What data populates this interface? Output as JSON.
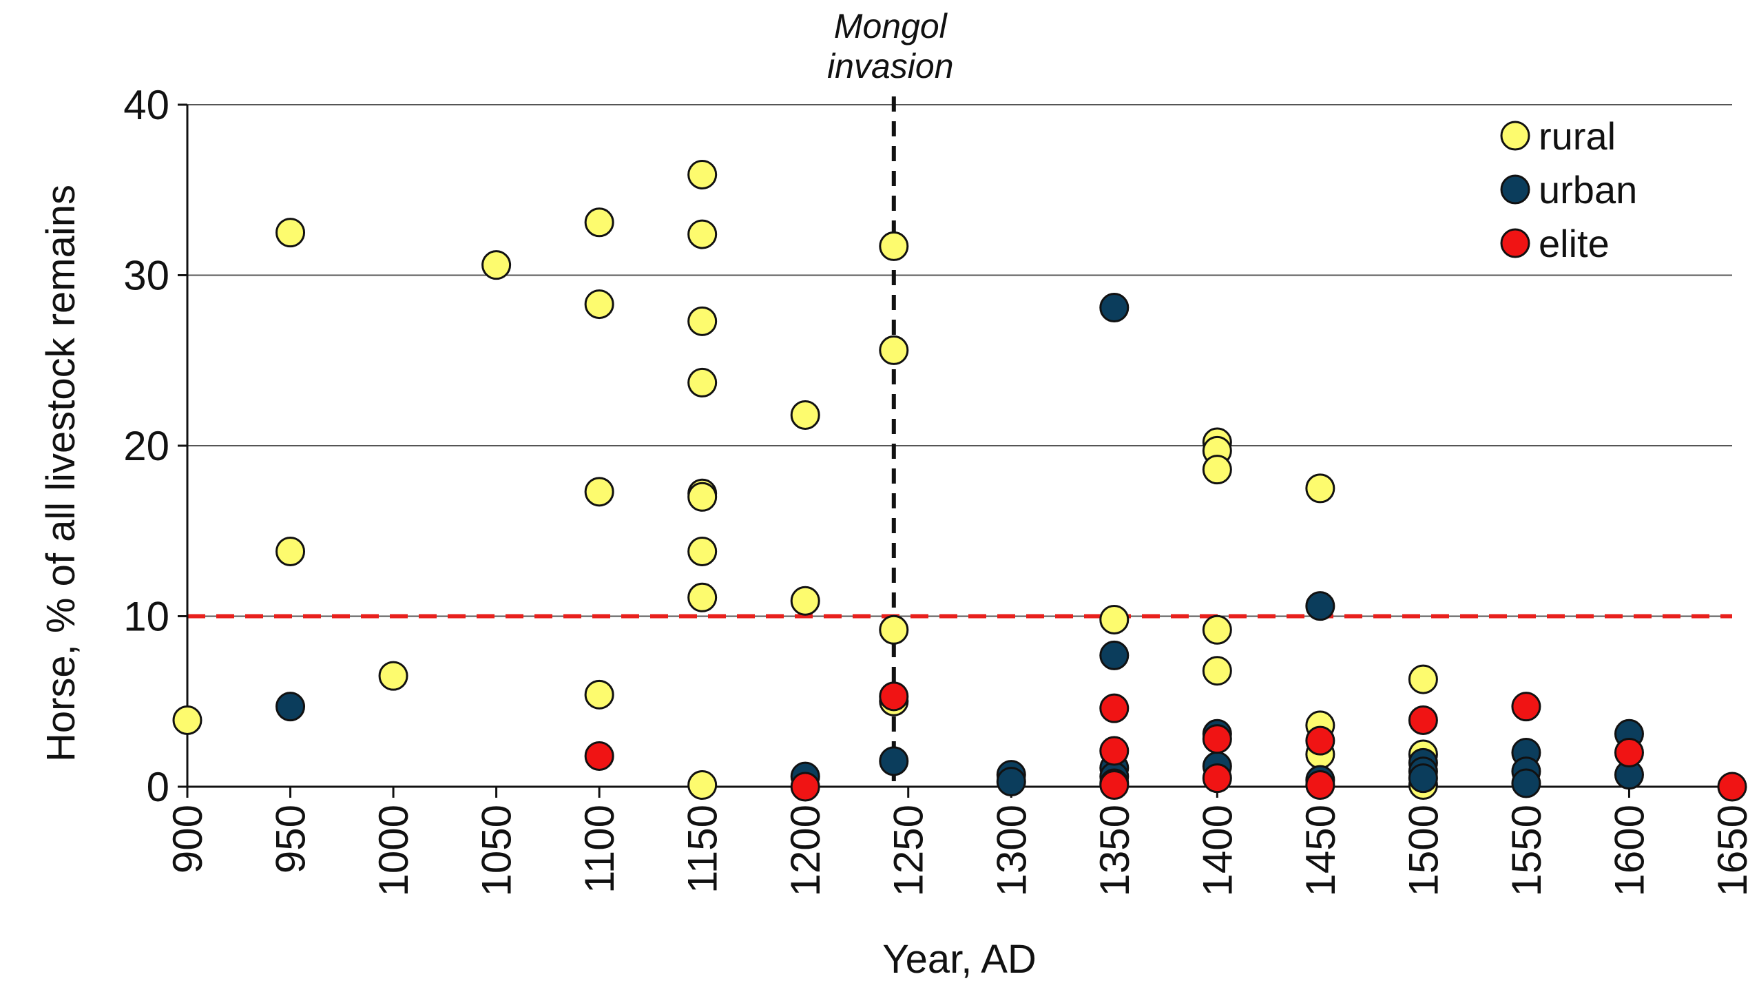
{
  "chart_data": {
    "type": "scatter",
    "xlabel": "Year, AD",
    "ylabel": "Horse, % of all livestock remains",
    "xlim": [
      900,
      1650
    ],
    "ylim": [
      0,
      40
    ],
    "xticks": [
      900,
      950,
      1000,
      1050,
      1100,
      1150,
      1200,
      1250,
      1300,
      1350,
      1400,
      1450,
      1500,
      1550,
      1600,
      1650
    ],
    "yticks": [
      0,
      10,
      20,
      30,
      40
    ],
    "grid": "horizontal",
    "legend_position": "top-right",
    "reference_lines": [
      {
        "orientation": "vertical",
        "x": 1243,
        "style": "dashed",
        "color": "#111111",
        "label_line1": "Mongol",
        "label_line2": "invasion"
      },
      {
        "orientation": "horizontal",
        "y": 10,
        "style": "dashed",
        "color": "#e8201c"
      }
    ],
    "series": [
      {
        "name": "rural",
        "color": "#fdfb6e",
        "points": [
          [
            900,
            3.9
          ],
          [
            950,
            32.5
          ],
          [
            950,
            13.8
          ],
          [
            1000,
            6.5
          ],
          [
            1050,
            30.6
          ],
          [
            1100,
            33.1
          ],
          [
            1100,
            28.3
          ],
          [
            1100,
            17.3
          ],
          [
            1100,
            5.4
          ],
          [
            1150,
            35.9
          ],
          [
            1150,
            32.4
          ],
          [
            1150,
            27.3
          ],
          [
            1150,
            23.7
          ],
          [
            1150,
            17.2
          ],
          [
            1150,
            17.0
          ],
          [
            1150,
            13.8
          ],
          [
            1150,
            11.1
          ],
          [
            1150,
            0.1
          ],
          [
            1200,
            21.8
          ],
          [
            1200,
            10.9
          ],
          [
            1243,
            31.7
          ],
          [
            1243,
            25.6
          ],
          [
            1243,
            9.2
          ],
          [
            1243,
            5.0
          ],
          [
            1350,
            9.8
          ],
          [
            1400,
            20.2
          ],
          [
            1400,
            19.7
          ],
          [
            1400,
            18.6
          ],
          [
            1400,
            9.2
          ],
          [
            1400,
            6.8
          ],
          [
            1450,
            17.5
          ],
          [
            1450,
            3.6
          ],
          [
            1450,
            1.9
          ],
          [
            1500,
            6.3
          ],
          [
            1500,
            1.9
          ],
          [
            1500,
            0.1
          ]
        ]
      },
      {
        "name": "urban",
        "color": "#0b3d5c",
        "points": [
          [
            950,
            4.7
          ],
          [
            1200,
            0.6
          ],
          [
            1243,
            1.5
          ],
          [
            1300,
            0.7
          ],
          [
            1300,
            0.3
          ],
          [
            1350,
            28.1
          ],
          [
            1350,
            7.7
          ],
          [
            1350,
            1.1
          ],
          [
            1350,
            0.6
          ],
          [
            1350,
            0.2
          ],
          [
            1400,
            3.1
          ],
          [
            1400,
            1.2
          ],
          [
            1450,
            10.6
          ],
          [
            1450,
            0.4
          ],
          [
            1500,
            1.4
          ],
          [
            1500,
            0.9
          ],
          [
            1500,
            0.5
          ],
          [
            1550,
            2.0
          ],
          [
            1550,
            0.9
          ],
          [
            1550,
            0.2
          ],
          [
            1600,
            3.1
          ],
          [
            1600,
            0.7
          ]
        ]
      },
      {
        "name": "elite",
        "color": "#f01414",
        "points": [
          [
            1100,
            1.8
          ],
          [
            1200,
            0.0
          ],
          [
            1243,
            5.3
          ],
          [
            1350,
            4.6
          ],
          [
            1350,
            2.1
          ],
          [
            1350,
            0.1
          ],
          [
            1400,
            2.8
          ],
          [
            1400,
            0.5
          ],
          [
            1450,
            2.7
          ],
          [
            1450,
            0.1
          ],
          [
            1500,
            3.9
          ],
          [
            1550,
            4.7
          ],
          [
            1600,
            2.0
          ],
          [
            1650,
            0.0
          ]
        ]
      }
    ]
  }
}
